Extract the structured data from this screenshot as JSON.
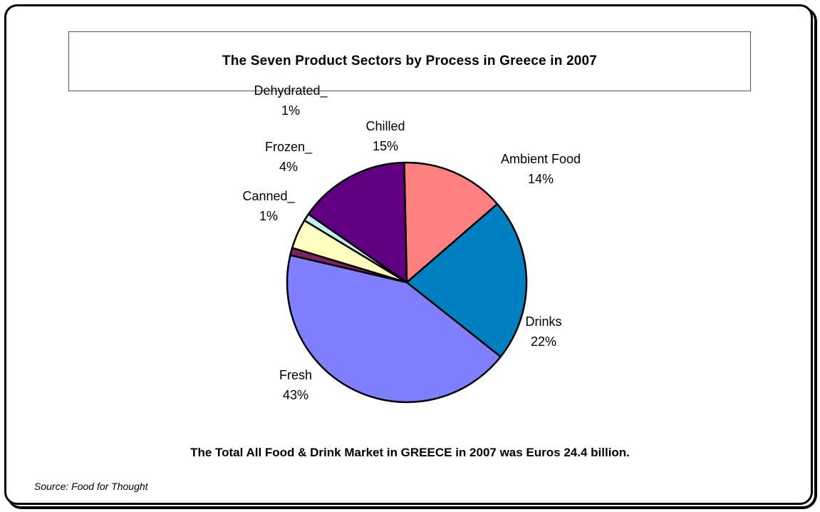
{
  "chart_data": {
    "type": "pie",
    "title": "The Seven Product Sectors by Process in Greece in 2007",
    "slices": [
      {
        "label": "Ambient Food",
        "value": 14,
        "pct_label": "14%",
        "color": "#FF8080"
      },
      {
        "label": "Drinks",
        "value": 22,
        "pct_label": "22%",
        "color": "#0080C0"
      },
      {
        "label": "Fresh",
        "value": 43,
        "pct_label": "43%",
        "color": "#8080FF"
      },
      {
        "label": "Canned_",
        "value": 1,
        "pct_label": "1%",
        "color": "#802060"
      },
      {
        "label": "Frozen_",
        "value": 4,
        "pct_label": "4%",
        "color": "#FFFFC0"
      },
      {
        "label": "Dehydrated_",
        "value": 1,
        "pct_label": "1%",
        "color": "#C0F0F0"
      },
      {
        "label": "Chilled",
        "value": 15,
        "pct_label": "15%",
        "color": "#600080"
      }
    ]
  },
  "footer": {
    "total_text": "The Total All Food & Drink Market in GREECE in 2007 was Euros  24.4 billion.",
    "source": "Source: Food for Thought"
  }
}
